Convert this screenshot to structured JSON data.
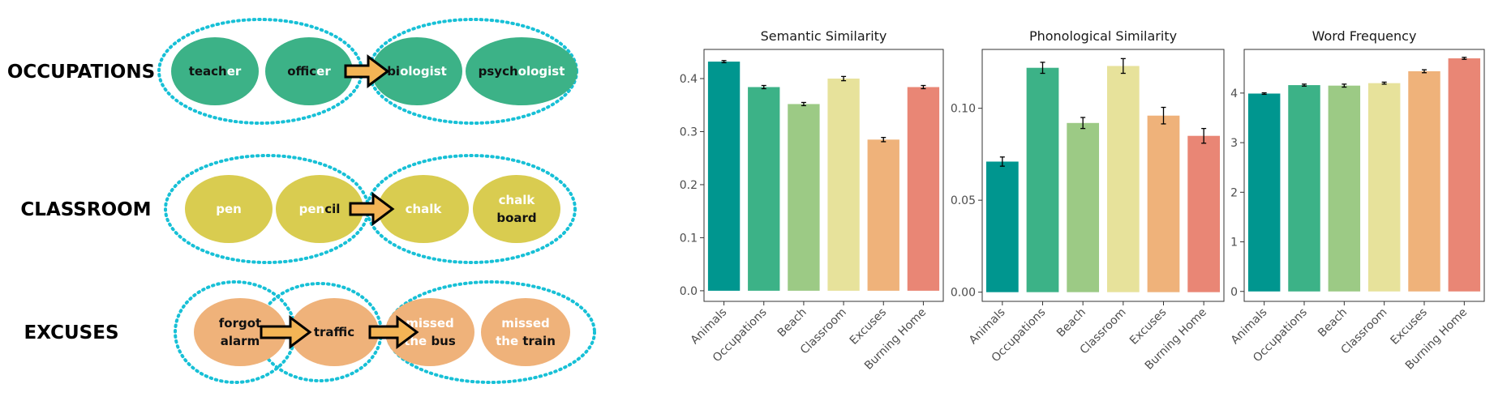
{
  "diagram": {
    "dotted_color": "#17c0d6",
    "rows": [
      {
        "label": "OCCUPATIONS",
        "color": "#3cb287",
        "nodes": [
          [
            {
              "t": "teach",
              "w": false
            },
            {
              "t": "er",
              "w": true
            }
          ],
          [
            {
              "t": "offic",
              "w": false
            },
            {
              "t": "er",
              "w": true
            }
          ],
          [
            {
              "t": "bi",
              "w": false
            },
            {
              "t": "ologist",
              "w": true
            }
          ],
          [
            {
              "t": "psych",
              "w": false
            },
            {
              "t": "ologist",
              "w": true
            }
          ]
        ]
      },
      {
        "label": "CLASSROOM",
        "color": "#d9cc50",
        "nodes": [
          [
            {
              "t": "pen",
              "w": true
            }
          ],
          [
            {
              "t": "pen",
              "w": true
            },
            {
              "t": "cil",
              "w": false
            }
          ],
          [
            {
              "t": "chalk",
              "w": true
            }
          ],
          [
            {
              "t": "chalk",
              "w": true
            },
            {
              "t": "\n",
              "w": true
            },
            {
              "t": "board",
              "w": false
            }
          ]
        ]
      },
      {
        "label": "EXCUSES",
        "color": "#efb27a",
        "nodes": [
          [
            {
              "t": "forgot",
              "w": false
            },
            {
              "t": "\n",
              "w": false
            },
            {
              "t": "alarm",
              "w": false
            }
          ],
          [
            {
              "t": "traffic",
              "w": false
            }
          ],
          [
            {
              "t": "missed",
              "w": true
            },
            {
              "t": "\n",
              "w": true
            },
            {
              "t": "the ",
              "w": true
            },
            {
              "t": "bus",
              "w": false
            }
          ],
          [
            {
              "t": "missed",
              "w": true
            },
            {
              "t": "\n",
              "w": true
            },
            {
              "t": "the ",
              "w": true
            },
            {
              "t": "train",
              "w": false
            }
          ]
        ]
      }
    ]
  },
  "chart_data": [
    {
      "type": "bar",
      "title": "Semantic Similarity",
      "categories": [
        "Animals",
        "Occupations",
        "Beach",
        "Classroom",
        "Excuses",
        "Burning Home"
      ],
      "values": [
        0.432,
        0.384,
        0.352,
        0.4,
        0.285,
        0.384
      ],
      "errors": [
        0.002,
        0.003,
        0.003,
        0.004,
        0.004,
        0.003
      ],
      "ylim": [
        -0.02,
        0.455
      ],
      "yticks": [
        0.0,
        0.1,
        0.2,
        0.3,
        0.4
      ],
      "ytick_labels": [
        "0.0",
        "0.1",
        "0.2",
        "0.3",
        "0.4"
      ]
    },
    {
      "type": "bar",
      "title": "Phonological Similarity",
      "categories": [
        "Animals",
        "Occupations",
        "Beach",
        "Classroom",
        "Excuses",
        "Burning Home"
      ],
      "values": [
        0.071,
        0.122,
        0.092,
        0.123,
        0.096,
        0.085
      ],
      "errors": [
        0.0025,
        0.003,
        0.003,
        0.004,
        0.0045,
        0.004
      ],
      "ylim": [
        -0.005,
        0.132
      ],
      "yticks": [
        0.0,
        0.05,
        0.1
      ],
      "ytick_labels": [
        "0.00",
        "0.05",
        "0.10"
      ]
    },
    {
      "type": "bar",
      "title": "Word Frequency",
      "categories": [
        "Animals",
        "Occupations",
        "Beach",
        "Classroom",
        "Excuses",
        "Burning Home"
      ],
      "values": [
        3.99,
        4.16,
        4.15,
        4.2,
        4.44,
        4.7
      ],
      "errors": [
        0.015,
        0.02,
        0.03,
        0.02,
        0.03,
        0.02
      ],
      "ylim": [
        -0.2,
        4.88
      ],
      "yticks": [
        0,
        1,
        2,
        3,
        4
      ],
      "ytick_labels": [
        "0",
        "1",
        "2",
        "3",
        "4"
      ]
    }
  ],
  "bar_colors": [
    "#00968f",
    "#3cb287",
    "#9cca85",
    "#e7e29b",
    "#efb27a",
    "#e98675"
  ]
}
